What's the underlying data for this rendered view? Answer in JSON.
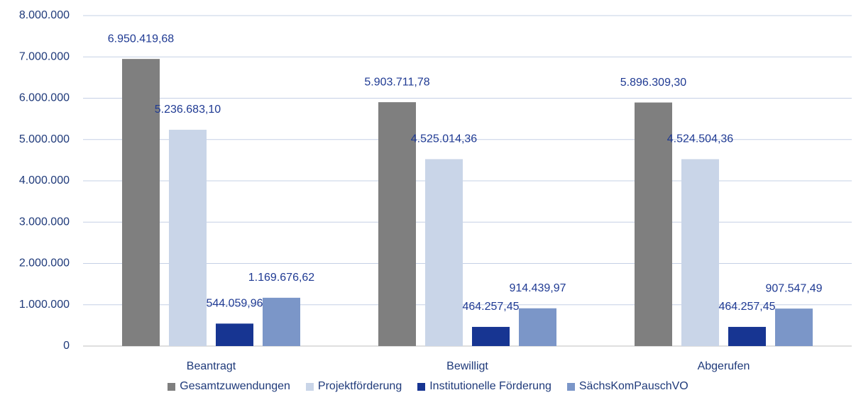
{
  "chart_data": {
    "type": "bar",
    "categories": [
      "Beantragt",
      "Bewilligt",
      "Abgerufen"
    ],
    "series": [
      {
        "name": "Gesamtzuwendungen",
        "color": "#7f7f7f",
        "values": [
          6950419.68,
          5903711.78,
          5896309.3
        ],
        "value_labels": [
          "6.950.419,68",
          "5.903.711,78",
          "5.896.309,30"
        ]
      },
      {
        "name": "Projektförderung",
        "color": "#c9d5e8",
        "values": [
          5236683.1,
          4525014.36,
          4524504.36
        ],
        "value_labels": [
          "5.236.683,10",
          "4.525.014,36",
          "4.524.504,36"
        ]
      },
      {
        "name": "Institutionelle Förderung",
        "color": "#173592",
        "values": [
          544059.96,
          464257.45,
          464257.45
        ],
        "value_labels": [
          "544.059,96",
          "464.257,45",
          "464.257,45"
        ]
      },
      {
        "name": "SächsKomPauschVO",
        "color": "#7b96c8",
        "values": [
          1169676.62,
          914439.97,
          907547.49
        ],
        "value_labels": [
          "1.169.676,62",
          "914.439,97",
          "907.547,49"
        ]
      }
    ],
    "ylim": [
      0,
      8000000
    ],
    "yticks": [
      0,
      {
        "value": 1000000,
        "label": "1.000.000"
      },
      {
        "value": 2000000,
        "label": "2.000.000"
      },
      {
        "value": 3000000,
        "label": "3.000.000"
      },
      {
        "value": 4000000,
        "label": "4.000.000"
      },
      {
        "value": 5000000,
        "label": "5.000.000"
      },
      {
        "value": 6000000,
        "label": "6.000.000"
      },
      {
        "value": 7000000,
        "label": "7.000.000"
      },
      {
        "value": 8000000,
        "label": "8.000.000"
      }
    ],
    "grid": true,
    "legend": "bottom"
  }
}
